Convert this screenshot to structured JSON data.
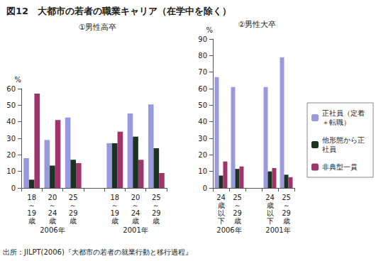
{
  "title": "図12　大都市の若者の職業キャリア（在学中を除く）",
  "source": "出所：JILPT(2006)『大都市の若者の就業行動と移行過程』",
  "chart_data": [
    {
      "type": "bar",
      "title": "①男性高卒",
      "y_label": "%",
      "categories": [
        "18～19歳",
        "20～24歳",
        "25～29歳",
        null,
        "18～19歳",
        "20～24歳",
        "25～29歳"
      ],
      "group_labels": [
        "2006年",
        "2001年"
      ],
      "series": [
        {
          "name": "正社員（定着＋転職）",
          "color": "#9999dd",
          "values": [
            18,
            29,
            42.5,
            null,
            27,
            45,
            50.5
          ]
        },
        {
          "name": "他形態から正社員",
          "color": "#1a3322",
          "values": [
            5,
            13.5,
            17,
            null,
            27,
            31,
            24
          ]
        },
        {
          "name": "非典型一貫",
          "color": "#a0336a",
          "values": [
            57,
            41,
            15,
            null,
            34,
            17,
            9
          ]
        }
      ],
      "ylim": [
        0,
        60
      ],
      "yticks": [
        0,
        10,
        20,
        30,
        40,
        50,
        60
      ],
      "grid": false
    },
    {
      "type": "bar",
      "title": "②男性大卒",
      "y_label": "%",
      "categories": [
        "24歳以下",
        "25～29歳",
        null,
        "24歳以下",
        "25～29歳"
      ],
      "group_labels": [
        "2006年",
        "2001年"
      ],
      "series": [
        {
          "name": "正社員（定着＋転職）",
          "color": "#9999dd",
          "values": [
            67,
            61,
            null,
            61,
            79
          ]
        },
        {
          "name": "他形態から正社員",
          "color": "#1a3322",
          "values": [
            7.5,
            11.5,
            null,
            10,
            8
          ]
        },
        {
          "name": "非典型一貫",
          "color": "#a0336a",
          "values": [
            16,
            13,
            null,
            12,
            6.5
          ]
        }
      ],
      "ylim": [
        0,
        90
      ],
      "yticks": [
        0,
        10,
        20,
        30,
        40,
        50,
        60,
        70,
        80,
        90
      ],
      "grid": false,
      "legend": "right"
    }
  ]
}
